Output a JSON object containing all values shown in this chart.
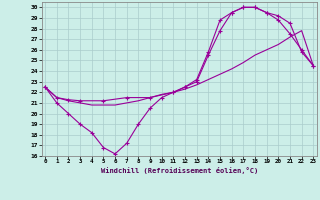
{
  "xlabel": "Windchill (Refroidissement éolien,°C)",
  "bg_color": "#cceee8",
  "grid_color": "#aacccc",
  "line_color": "#990099",
  "line1_x": [
    0,
    1,
    2,
    3,
    4,
    5,
    6,
    7,
    8,
    9,
    10,
    11,
    12,
    13,
    14,
    15,
    16,
    17,
    18,
    19,
    20,
    21,
    22,
    23
  ],
  "line1_y": [
    22.5,
    21,
    20,
    19,
    18.2,
    16.8,
    16.2,
    17.2,
    19,
    20.5,
    21.5,
    22,
    22.5,
    23,
    25.5,
    27.8,
    29.5,
    30,
    30,
    29.5,
    28.8,
    27.5,
    26,
    24.5
  ],
  "line2_x": [
    0,
    1,
    2,
    3,
    4,
    5,
    6,
    7,
    8,
    9,
    10,
    11,
    12,
    13,
    14,
    15,
    16,
    17,
    18,
    19,
    20,
    21,
    22,
    23
  ],
  "line2_y": [
    22.5,
    21.5,
    21.2,
    21.0,
    20.8,
    20.8,
    20.8,
    21.0,
    21.2,
    21.5,
    21.8,
    22.0,
    22.3,
    22.7,
    23.2,
    23.7,
    24.2,
    24.8,
    25.5,
    26.0,
    26.5,
    27.2,
    27.8,
    24.5
  ],
  "line3_x": [
    0,
    1,
    2,
    3,
    5,
    7,
    9,
    11,
    12,
    13,
    14,
    15,
    16,
    17,
    18,
    19,
    20,
    21,
    22,
    23
  ],
  "line3_y": [
    22.5,
    21.5,
    21.3,
    21.2,
    21.2,
    21.5,
    21.5,
    22.0,
    22.5,
    23.2,
    25.8,
    28.8,
    29.5,
    30.0,
    30.0,
    29.5,
    29.2,
    28.5,
    25.8,
    24.5
  ],
  "xlim": [
    -0.3,
    23.3
  ],
  "ylim": [
    16,
    30.5
  ],
  "xticks": [
    0,
    1,
    2,
    3,
    4,
    5,
    6,
    7,
    8,
    9,
    10,
    11,
    12,
    13,
    14,
    15,
    16,
    17,
    18,
    19,
    20,
    21,
    22,
    23
  ],
  "yticks": [
    16,
    17,
    18,
    19,
    20,
    21,
    22,
    23,
    24,
    25,
    26,
    27,
    28,
    29,
    30
  ]
}
